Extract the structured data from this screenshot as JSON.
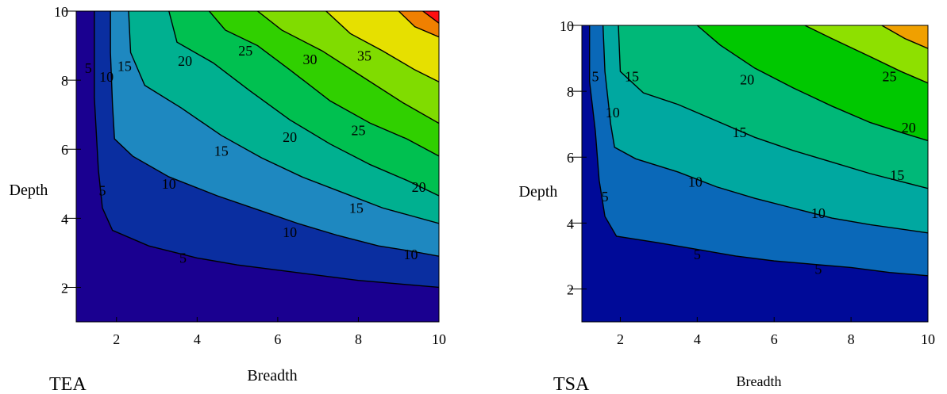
{
  "chart_data": [
    {
      "type": "contour",
      "panel_label": "TEA",
      "xlabel": "Breadth",
      "ylabel": "Depth",
      "xlim": [
        1,
        10
      ],
      "ylim": [
        1,
        10
      ],
      "xticks": [
        "2",
        "4",
        "6",
        "8",
        "10"
      ],
      "yticks": [
        "2",
        "4",
        "6",
        "8",
        "10"
      ],
      "levels": [
        5,
        10,
        15,
        20,
        25,
        30,
        35
      ],
      "fill_colors": [
        "#1a0090",
        "#0a2ea0",
        "#1e88c0",
        "#00b090",
        "#00c050",
        "#30d000",
        "#80dc00",
        "#e6e000",
        "#f08000",
        "#ff1010"
      ],
      "contour_lines": [
        {
          "level": 5,
          "points": [
            [
              1.45,
              10
            ],
            [
              1.45,
              7.5
            ],
            [
              1.55,
              5.4
            ],
            [
              1.65,
              4.3
            ],
            [
              1.9,
              3.65
            ],
            [
              2.8,
              3.2
            ],
            [
              4,
              2.85
            ],
            [
              5,
              2.65
            ],
            [
              6,
              2.5
            ],
            [
              7,
              2.35
            ],
            [
              8,
              2.2
            ],
            [
              9,
              2.1
            ],
            [
              10,
              2.0
            ]
          ]
        },
        {
          "level": 10,
          "points": [
            [
              1.85,
              10
            ],
            [
              1.85,
              8.8
            ],
            [
              1.9,
              7.3
            ],
            [
              1.95,
              6.3
            ],
            [
              2.4,
              5.8
            ],
            [
              3.3,
              5.2
            ],
            [
              4.5,
              4.65
            ],
            [
              5.5,
              4.25
            ],
            [
              6.5,
              3.85
            ],
            [
              7.5,
              3.5
            ],
            [
              8.5,
              3.2
            ],
            [
              9.3,
              3.05
            ],
            [
              10,
              2.9
            ]
          ]
        },
        {
          "level": 15,
          "points": [
            [
              2.3,
              10
            ],
            [
              2.35,
              8.8
            ],
            [
              2.7,
              7.85
            ],
            [
              3.6,
              7.2
            ],
            [
              4.6,
              6.4
            ],
            [
              5.6,
              5.75
            ],
            [
              6.6,
              5.2
            ],
            [
              7.6,
              4.75
            ],
            [
              8.6,
              4.3
            ],
            [
              10,
              3.85
            ]
          ]
        },
        {
          "level": 20,
          "points": [
            [
              3.3,
              10
            ],
            [
              3.5,
              9.1
            ],
            [
              4.4,
              8.5
            ],
            [
              5.3,
              7.7
            ],
            [
              6.3,
              6.85
            ],
            [
              7.3,
              6.15
            ],
            [
              8.3,
              5.55
            ],
            [
              9.2,
              5.1
            ],
            [
              10,
              4.65
            ]
          ]
        },
        {
          "level": 25,
          "points": [
            [
              4.3,
              10
            ],
            [
              4.7,
              9.45
            ],
            [
              5.5,
              9.0
            ],
            [
              6.3,
              8.3
            ],
            [
              7.3,
              7.4
            ],
            [
              8.3,
              6.75
            ],
            [
              9.2,
              6.3
            ],
            [
              10,
              5.8
            ]
          ]
        },
        {
          "level": 30,
          "points": [
            [
              5.5,
              10
            ],
            [
              6.1,
              9.45
            ],
            [
              7.1,
              8.85
            ],
            [
              8.1,
              8.1
            ],
            [
              9.1,
              7.35
            ],
            [
              10,
              6.75
            ]
          ]
        },
        {
          "level": 35,
          "points": [
            [
              7.2,
              10
            ],
            [
              7.8,
              9.35
            ],
            [
              8.6,
              8.85
            ],
            [
              9.4,
              8.3
            ],
            [
              10,
              7.95
            ]
          ]
        },
        {
          "level": 40,
          "points": [
            [
              9.0,
              10
            ],
            [
              9.4,
              9.55
            ],
            [
              10,
              9.25
            ]
          ]
        },
        {
          "level": 45,
          "points": [
            [
              9.6,
              10
            ],
            [
              10,
              9.65
            ]
          ]
        }
      ],
      "labels": [
        {
          "text": "5",
          "x": 1.3,
          "y": 8.35
        },
        {
          "text": "5",
          "x": 1.65,
          "y": 4.8
        },
        {
          "text": "5",
          "x": 3.65,
          "y": 2.85
        },
        {
          "text": "10",
          "x": 1.75,
          "y": 8.1
        },
        {
          "text": "10",
          "x": 3.3,
          "y": 5.0
        },
        {
          "text": "10",
          "x": 6.3,
          "y": 3.6
        },
        {
          "text": "10",
          "x": 9.3,
          "y": 2.95
        },
        {
          "text": "15",
          "x": 2.2,
          "y": 8.4
        },
        {
          "text": "15",
          "x": 4.6,
          "y": 5.95
        },
        {
          "text": "15",
          "x": 7.95,
          "y": 4.3
        },
        {
          "text": "20",
          "x": 3.7,
          "y": 8.55
        },
        {
          "text": "20",
          "x": 6.3,
          "y": 6.35
        },
        {
          "text": "20",
          "x": 9.5,
          "y": 4.9
        },
        {
          "text": "25",
          "x": 5.2,
          "y": 8.85
        },
        {
          "text": "25",
          "x": 8.0,
          "y": 6.55
        },
        {
          "text": "30",
          "x": 6.8,
          "y": 8.6
        },
        {
          "text": "35",
          "x": 8.15,
          "y": 8.7
        }
      ]
    },
    {
      "type": "contour",
      "panel_label": "TSA",
      "xlabel": "Breadth",
      "ylabel": "Depth",
      "xlim": [
        1,
        10
      ],
      "ylim": [
        1,
        10
      ],
      "xticks": [
        "2",
        "4",
        "6",
        "8",
        "10"
      ],
      "yticks": [
        "2",
        "4",
        "6",
        "8",
        "10"
      ],
      "levels": [
        5,
        10,
        15,
        20,
        25
      ],
      "fill_colors": [
        "#000a98",
        "#0a68b8",
        "#00a8a0",
        "#00b878",
        "#00c800",
        "#8ee000",
        "#f0a000",
        "#ff1010"
      ],
      "contour_lines": [
        {
          "level": 5,
          "points": [
            [
              1.2,
              10
            ],
            [
              1.2,
              8.3
            ],
            [
              1.35,
              6.8
            ],
            [
              1.45,
              5.3
            ],
            [
              1.6,
              4.2
            ],
            [
              1.9,
              3.6
            ],
            [
              3,
              3.4
            ],
            [
              4,
              3.2
            ],
            [
              5,
              3.0
            ],
            [
              6,
              2.85
            ],
            [
              7,
              2.75
            ],
            [
              8,
              2.65
            ],
            [
              9,
              2.5
            ],
            [
              10,
              2.4
            ]
          ]
        },
        {
          "level": 10,
          "points": [
            [
              1.55,
              10
            ],
            [
              1.6,
              8.6
            ],
            [
              1.75,
              7.0
            ],
            [
              1.85,
              6.3
            ],
            [
              2.4,
              5.95
            ],
            [
              3.5,
              5.55
            ],
            [
              4.5,
              5.1
            ],
            [
              5.5,
              4.75
            ],
            [
              6.5,
              4.45
            ],
            [
              7.5,
              4.15
            ],
            [
              8.5,
              3.95
            ],
            [
              10,
              3.7
            ]
          ]
        },
        {
          "level": 15,
          "points": [
            [
              1.95,
              10
            ],
            [
              2.0,
              8.6
            ],
            [
              2.6,
              7.95
            ],
            [
              3.5,
              7.6
            ],
            [
              4.5,
              7.1
            ],
            [
              5.5,
              6.6
            ],
            [
              6.5,
              6.2
            ],
            [
              7.5,
              5.85
            ],
            [
              8.5,
              5.5
            ],
            [
              10,
              5.05
            ]
          ]
        },
        {
          "level": 20,
          "points": [
            [
              4.0,
              10
            ],
            [
              4.6,
              9.4
            ],
            [
              5.5,
              8.7
            ],
            [
              6.5,
              8.1
            ],
            [
              7.5,
              7.55
            ],
            [
              8.5,
              7.05
            ],
            [
              9.3,
              6.75
            ],
            [
              10,
              6.5
            ]
          ]
        },
        {
          "level": 25,
          "points": [
            [
              6.8,
              10
            ],
            [
              7.5,
              9.6
            ],
            [
              8.5,
              9.05
            ],
            [
              9.3,
              8.6
            ],
            [
              10,
              8.25
            ]
          ]
        },
        {
          "level": 30,
          "points": [
            [
              8.8,
              10
            ],
            [
              9.4,
              9.6
            ],
            [
              10,
              9.3
            ]
          ]
        }
      ],
      "labels": [
        {
          "text": "5",
          "x": 1.35,
          "y": 8.45
        },
        {
          "text": "5",
          "x": 1.6,
          "y": 4.8
        },
        {
          "text": "5",
          "x": 4.0,
          "y": 3.05
        },
        {
          "text": "5",
          "x": 7.15,
          "y": 2.6
        },
        {
          "text": "10",
          "x": 1.8,
          "y": 7.35
        },
        {
          "text": "10",
          "x": 3.95,
          "y": 5.25
        },
        {
          "text": "10",
          "x": 7.15,
          "y": 4.3
        },
        {
          "text": "15",
          "x": 2.3,
          "y": 8.45
        },
        {
          "text": "15",
          "x": 5.1,
          "y": 6.75
        },
        {
          "text": "15",
          "x": 9.2,
          "y": 5.45
        },
        {
          "text": "20",
          "x": 5.3,
          "y": 8.35
        },
        {
          "text": "20",
          "x": 9.5,
          "y": 6.9
        },
        {
          "text": "25",
          "x": 9.0,
          "y": 8.45
        }
      ]
    }
  ]
}
